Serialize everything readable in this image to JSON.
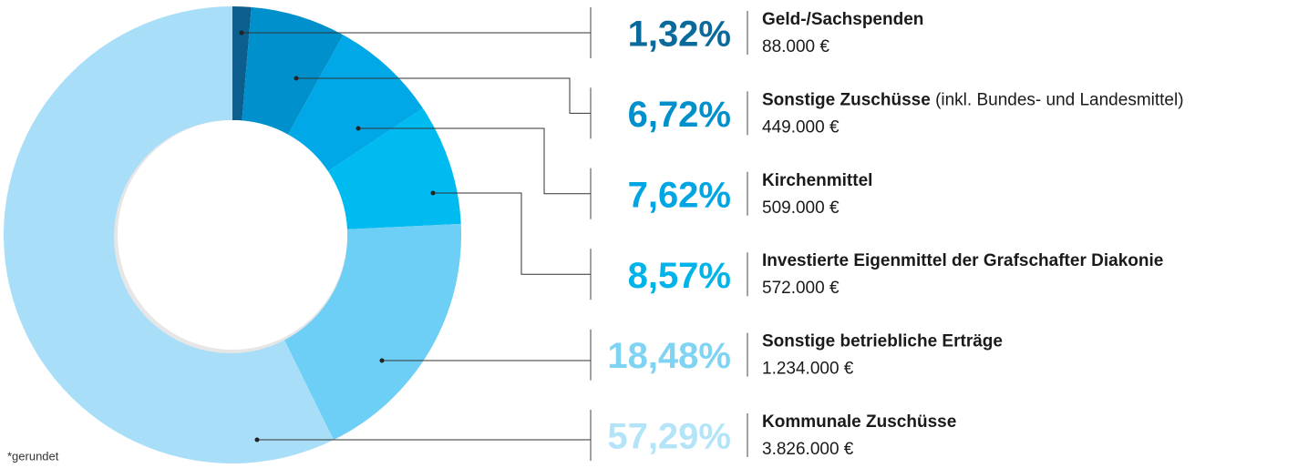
{
  "chart_data": {
    "type": "pie",
    "donut": true,
    "categories": [
      "Geld-/Sachspenden",
      "Sonstige Zuschüsse",
      "Kirchenmittel",
      "Investierte Eigenmittel der Grafschafter Diakonie",
      "Sonstige betriebliche Erträge",
      "Kommunale Zuschüsse"
    ],
    "category_notes": [
      null,
      "(inkl. Bundes- und Landesmittel)",
      null,
      null,
      null,
      null
    ],
    "values": [
      1.32,
      6.72,
      7.62,
      8.57,
      18.48,
      57.29
    ],
    "value_labels": [
      "1,32%",
      "6,72%",
      "7,62%",
      "8,57%",
      "18,48%",
      "57,29%"
    ],
    "amount_labels": [
      "88.000 €",
      "449.000 €",
      "509.000 €",
      "572.000 €",
      "1.234.000 €",
      "3.826.000 €"
    ],
    "colors": [
      "#0b5e8e",
      "#0090cc",
      "#00a8e8",
      "#00bbef",
      "#6dcff5",
      "#a8def8"
    ],
    "label_colors": [
      "#0b6a9c",
      "#0090cc",
      "#00a6e4",
      "#00b4ea",
      "#80d4f3",
      "#b4e4f8"
    ],
    "footnote": "*gerundet"
  }
}
